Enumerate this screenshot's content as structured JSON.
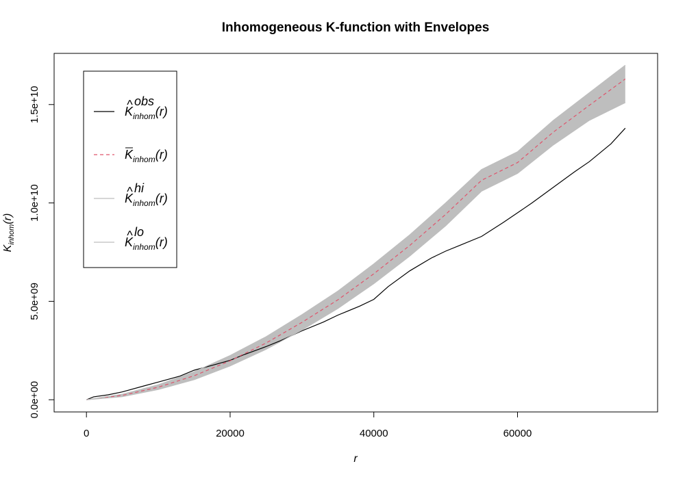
{
  "chart_data": {
    "type": "line",
    "title": "Inhomogeneous K-function with Envelopes",
    "xlabel": "r",
    "ylabel": {
      "main": "K",
      "sub": "inhom",
      "tail": "(r)"
    },
    "xlim": [
      -4500,
      79500
    ],
    "ylim": [
      -620000000.0,
      17600000000.0
    ],
    "xticks": [
      0,
      20000,
      40000,
      60000
    ],
    "xtick_labels": [
      "0",
      "20000",
      "40000",
      "60000"
    ],
    "yticks": [
      0,
      5000000000.0,
      10000000000.0,
      15000000000.0
    ],
    "ytick_labels": [
      "0.0e+00",
      "5.0e+09",
      "1.0e+10",
      "1.5e+10"
    ],
    "legend": {
      "position": "top-left",
      "entries": [
        {
          "key": "obs",
          "main": "K",
          "hat": "^",
          "sub": "inhom",
          "sup": "obs",
          "tail": "(r)",
          "color": "#000000",
          "dash": "none"
        },
        {
          "key": "mmean",
          "main": "K",
          "hat": "bar",
          "sub": "inhom",
          "sup": "",
          "tail": "(r)",
          "color": "#DF536B",
          "dash": "5,4"
        },
        {
          "key": "hi",
          "main": "K",
          "hat": "^",
          "sub": "inhom",
          "sup": "hi",
          "tail": "(r)",
          "color": "#BEBEBE",
          "dash": "none"
        },
        {
          "key": "lo",
          "main": "K",
          "hat": "^",
          "sub": "inhom",
          "sup": "lo",
          "tail": "(r)",
          "color": "#BEBEBE",
          "dash": "none"
        }
      ]
    },
    "series": [
      {
        "key": "obs",
        "color": "#000000",
        "x": [
          0,
          1000,
          3000,
          5000,
          8000,
          10000,
          13000,
          15000,
          18000,
          20000,
          22000,
          25000,
          27000,
          30000,
          33000,
          35000,
          38000,
          40000,
          42000,
          45000,
          48000,
          50000,
          52000,
          55000,
          58000,
          60000,
          62000,
          65000,
          68000,
          70000,
          73000,
          75000
        ],
        "y": [
          0,
          150000000.0,
          250000000.0,
          400000000.0,
          700000000.0,
          900000000.0,
          1200000000.0,
          1500000000.0,
          1800000000.0,
          2000000000.0,
          2300000000.0,
          2700000000.0,
          3000000000.0,
          3500000000.0,
          3950000000.0,
          4300000000.0,
          4750000000.0,
          5100000000.0,
          5750000000.0,
          6550000000.0,
          7200000000.0,
          7550000000.0,
          7850000000.0,
          8300000000.0,
          9000000000.0,
          9500000000.0,
          10000000000.0,
          10800000000.0,
          11600000000.0,
          12100000000.0,
          13000000000.0,
          13800000000.0
        ]
      },
      {
        "key": "mmean",
        "color": "#DF536B",
        "x": [
          0,
          5000,
          10000,
          15000,
          20000,
          25000,
          30000,
          35000,
          40000,
          45000,
          50000,
          55000,
          60000,
          65000,
          70000,
          75000
        ],
        "y": [
          0,
          220000000.0,
          640000000.0,
          1220000000.0,
          1980000000.0,
          2880000000.0,
          3930000000.0,
          5080000000.0,
          6400000000.0,
          7840000000.0,
          9420000000.0,
          11150000000.0,
          12050000000.0,
          13600000000.0,
          14960000000.0,
          16300000000.0
        ]
      },
      {
        "key": "hi",
        "color": "#BEBEBE",
        "x": [
          0,
          5000,
          10000,
          15000,
          20000,
          25000,
          30000,
          35000,
          40000,
          45000,
          50000,
          55000,
          60000,
          65000,
          70000,
          75000
        ],
        "y": [
          0,
          280000000.0,
          760000000.0,
          1420000000.0,
          2250000000.0,
          3200000000.0,
          4320000000.0,
          5520000000.0,
          6900000000.0,
          8380000000.0,
          10000000000.0,
          11700000000.0,
          12600000000.0,
          14200000000.0,
          15600000000.0,
          17000000000.0
        ]
      },
      {
        "key": "lo",
        "color": "#BEBEBE",
        "x": [
          0,
          5000,
          10000,
          15000,
          20000,
          25000,
          30000,
          35000,
          40000,
          45000,
          50000,
          55000,
          60000,
          65000,
          70000,
          75000
        ],
        "y": [
          0,
          160000000.0,
          520000000.0,
          1020000000.0,
          1720000000.0,
          2560000000.0,
          3540000000.0,
          4640000000.0,
          5900000000.0,
          7300000000.0,
          8840000000.0,
          10600000000.0,
          11500000000.0,
          12950000000.0,
          14200000000.0,
          15100000000.0
        ]
      }
    ],
    "grid": false
  }
}
